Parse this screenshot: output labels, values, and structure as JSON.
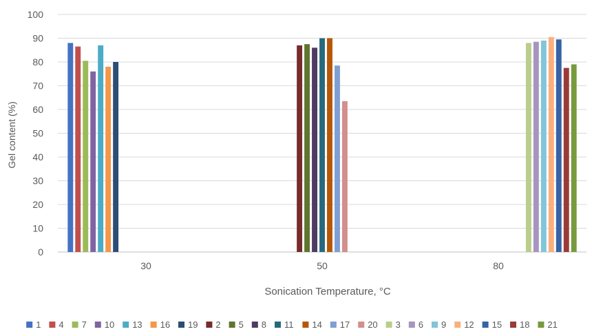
{
  "chart_data": {
    "type": "bar",
    "title": "",
    "xlabel": "Sonication Temperature, °C",
    "ylabel": "Gel content (%)",
    "ylim": [
      0,
      100
    ],
    "yticks": [
      0,
      10,
      20,
      30,
      40,
      50,
      60,
      70,
      80,
      90,
      100
    ],
    "grid": true,
    "legend_position": "bottom",
    "categories": [
      "30",
      "50",
      "80"
    ],
    "series": [
      {
        "name": "1",
        "color": "#4472C4",
        "category": "30",
        "value": 88
      },
      {
        "name": "4",
        "color": "#C0504D",
        "category": "30",
        "value": 86.5
      },
      {
        "name": "7",
        "color": "#9BBB59",
        "category": "30",
        "value": 80.5
      },
      {
        "name": "10",
        "color": "#8064A2",
        "category": "30",
        "value": 76
      },
      {
        "name": "13",
        "color": "#4BACC6",
        "category": "30",
        "value": 87
      },
      {
        "name": "16",
        "color": "#F79646",
        "category": "30",
        "value": 78
      },
      {
        "name": "19",
        "color": "#2C4D75",
        "category": "30",
        "value": 80
      },
      {
        "name": "2",
        "color": "#772C2A",
        "category": "50",
        "value": 87
      },
      {
        "name": "5",
        "color": "#5F7530",
        "category": "50",
        "value": 87.5
      },
      {
        "name": "8",
        "color": "#4D3B62",
        "category": "50",
        "value": 86
      },
      {
        "name": "11",
        "color": "#276A7C",
        "category": "50",
        "value": 90
      },
      {
        "name": "14",
        "color": "#B65708",
        "category": "50",
        "value": 90
      },
      {
        "name": "17",
        "color": "#7F9FD3",
        "category": "50",
        "value": 78.5
      },
      {
        "name": "20",
        "color": "#D28F8D",
        "category": "50",
        "value": 63.5
      },
      {
        "name": "3",
        "color": "#B9CE8A",
        "category": "80",
        "value": 88
      },
      {
        "name": "6",
        "color": "#A695BE",
        "category": "80",
        "value": 88.5
      },
      {
        "name": "9",
        "color": "#81C5D9",
        "category": "80",
        "value": 89
      },
      {
        "name": "12",
        "color": "#FAB07E",
        "category": "80",
        "value": 90.5
      },
      {
        "name": "15",
        "color": "#3763A4",
        "category": "80",
        "value": 89.5
      },
      {
        "name": "18",
        "color": "#9A3B38",
        "category": "80",
        "value": 77.5
      },
      {
        "name": "21",
        "color": "#779A3E",
        "category": "80",
        "value": 79
      }
    ]
  }
}
